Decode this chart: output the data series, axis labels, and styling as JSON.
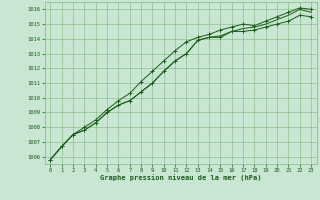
{
  "title": "Graphe pression niveau de la mer (hPa)",
  "background_color": "#c8e6d2",
  "grid_color": "#80b880",
  "line_color": "#1a5c1a",
  "xlim": [
    -0.5,
    23.5
  ],
  "ylim": [
    1005.5,
    1016.5
  ],
  "yticks": [
    1006,
    1007,
    1008,
    1009,
    1010,
    1011,
    1012,
    1013,
    1014,
    1015,
    1016
  ],
  "xticks": [
    0,
    1,
    2,
    3,
    4,
    5,
    6,
    7,
    8,
    9,
    10,
    11,
    12,
    13,
    14,
    15,
    16,
    17,
    18,
    19,
    20,
    21,
    22,
    23
  ],
  "series1": [
    1005.8,
    1006.7,
    1007.5,
    1007.8,
    1008.3,
    1009.0,
    1009.5,
    1009.8,
    1010.4,
    1011.0,
    1011.8,
    1012.5,
    1013.0,
    1013.9,
    1014.1,
    1014.1,
    1014.5,
    1014.5,
    1014.6,
    1014.8,
    1015.0,
    1015.2,
    1015.6,
    1015.5
  ],
  "series2": [
    1005.8,
    1006.7,
    1007.5,
    1007.8,
    1008.3,
    1009.0,
    1009.5,
    1009.8,
    1010.4,
    1011.0,
    1011.8,
    1012.5,
    1013.0,
    1013.9,
    1014.1,
    1014.2,
    1014.5,
    1014.7,
    1014.8,
    1015.0,
    1015.3,
    1015.6,
    1016.0,
    1015.8
  ],
  "series3": [
    1005.8,
    1006.7,
    1007.5,
    1008.0,
    1008.5,
    1009.2,
    1009.8,
    1010.3,
    1011.1,
    1011.8,
    1012.5,
    1013.2,
    1013.8,
    1014.1,
    1014.3,
    1014.6,
    1014.8,
    1015.0,
    1014.9,
    1015.2,
    1015.5,
    1015.8,
    1016.1,
    1016.0
  ]
}
